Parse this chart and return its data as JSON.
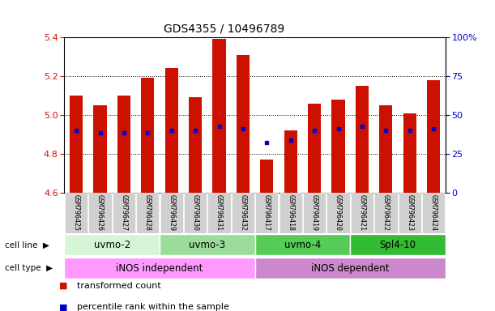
{
  "title": "GDS4355 / 10496789",
  "samples": [
    "GSM796425",
    "GSM796426",
    "GSM796427",
    "GSM796428",
    "GSM796429",
    "GSM796430",
    "GSM796431",
    "GSM796432",
    "GSM796417",
    "GSM796418",
    "GSM796419",
    "GSM796420",
    "GSM796421",
    "GSM796422",
    "GSM796423",
    "GSM796424"
  ],
  "bar_top": [
    5.1,
    5.05,
    5.1,
    5.19,
    5.24,
    5.09,
    5.39,
    5.31,
    4.77,
    4.92,
    5.06,
    5.08,
    5.15,
    5.05,
    5.01,
    5.18
  ],
  "bar_bottom": 4.6,
  "blue_dot_value": [
    4.92,
    4.91,
    4.91,
    4.91,
    4.92,
    4.92,
    4.94,
    4.93,
    4.86,
    4.87,
    4.92,
    4.93,
    4.94,
    4.92,
    4.92,
    4.93
  ],
  "ylim_left": [
    4.6,
    5.4
  ],
  "ylim_right": [
    0,
    100
  ],
  "left_ticks": [
    4.6,
    4.8,
    5.0,
    5.2,
    5.4
  ],
  "right_ticks": [
    0,
    25,
    50,
    75,
    100
  ],
  "right_tick_labels": [
    "0",
    "25",
    "50",
    "75",
    "100%"
  ],
  "cell_lines": [
    {
      "label": "uvmo-2",
      "start": 0,
      "end": 4,
      "color": "#d6f5d6"
    },
    {
      "label": "uvmo-3",
      "start": 4,
      "end": 8,
      "color": "#99dd99"
    },
    {
      "label": "uvmo-4",
      "start": 8,
      "end": 12,
      "color": "#55cc55"
    },
    {
      "label": "Spl4-10",
      "start": 12,
      "end": 16,
      "color": "#33bb33"
    }
  ],
  "cell_types": [
    {
      "label": "iNOS independent",
      "start": 0,
      "end": 8,
      "color": "#ff99ff"
    },
    {
      "label": "iNOS dependent",
      "start": 8,
      "end": 16,
      "color": "#cc88cc"
    }
  ],
  "bar_color": "#cc1100",
  "blue_color": "#0000cc",
  "bar_width": 0.55,
  "left_tick_color": "#cc1100",
  "right_tick_color": "#0000cc",
  "title_fontsize": 10,
  "tick_fontsize": 8,
  "sample_fontsize": 6,
  "label_fontsize": 8.5,
  "legend_fontsize": 8
}
